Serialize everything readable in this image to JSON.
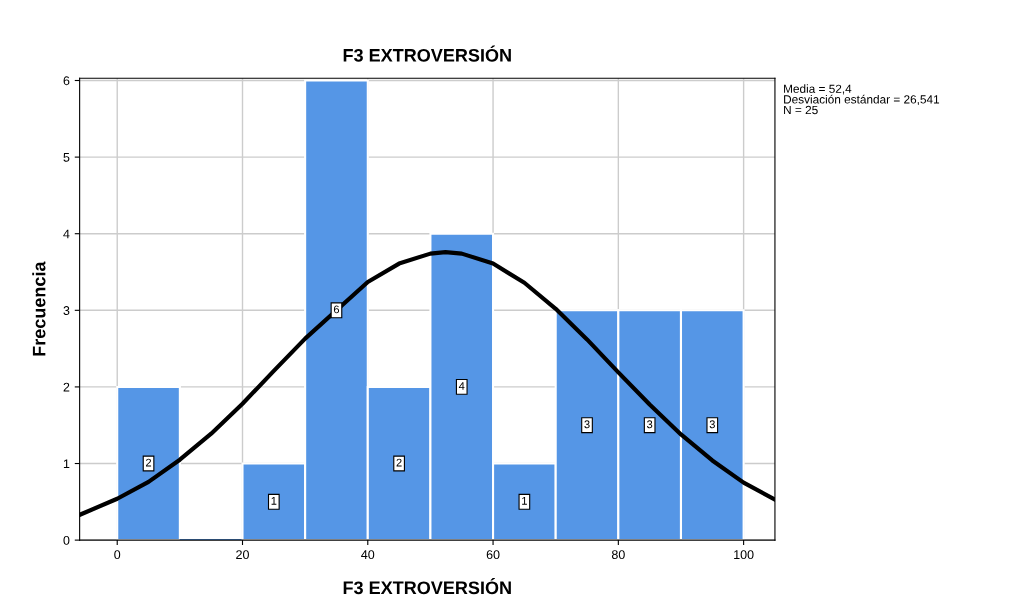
{
  "chart_data": {
    "type": "histogram",
    "title": "F3 EXTROVERSIÓN",
    "xlabel": "F3 EXTROVERSIÓN",
    "ylabel": "Frecuencia",
    "bins": [
      0,
      10,
      20,
      30,
      40,
      50,
      60,
      70,
      80,
      90,
      100
    ],
    "values": [
      2,
      0,
      1,
      6,
      2,
      4,
      1,
      3,
      3,
      3
    ],
    "color": "#5596e6",
    "value_labels": [
      "2",
      null,
      "1",
      "6",
      "2",
      "4",
      "1",
      "3",
      "3",
      "3"
    ],
    "series": [
      {
        "type": "line",
        "color": "#000000",
        "x": [
          -6,
          0,
          5,
          10,
          15,
          20,
          25,
          30,
          40,
          45,
          50,
          52.4,
          55,
          60,
          65,
          70,
          75,
          80,
          85,
          90,
          95,
          100,
          105
        ],
        "values": [
          0.33,
          0.54,
          0.76,
          1.05,
          1.39,
          1.78,
          2.21,
          2.63,
          3.37,
          3.61,
          3.74,
          3.76,
          3.74,
          3.61,
          3.36,
          3.02,
          2.62,
          2.19,
          1.77,
          1.38,
          1.04,
          0.75,
          0.53
        ]
      }
    ],
    "xlim": [
      -6,
      105
    ],
    "xticks": [
      0,
      20,
      40,
      60,
      80,
      100
    ],
    "ylim": [
      0,
      6.03
    ],
    "yticks": [
      0,
      1,
      2,
      3,
      4,
      5,
      6
    ],
    "grid": true,
    "legend": false,
    "annotations": [
      "Media = 52,4\nDesviación estándar = 26,541\nN = 25"
    ]
  }
}
